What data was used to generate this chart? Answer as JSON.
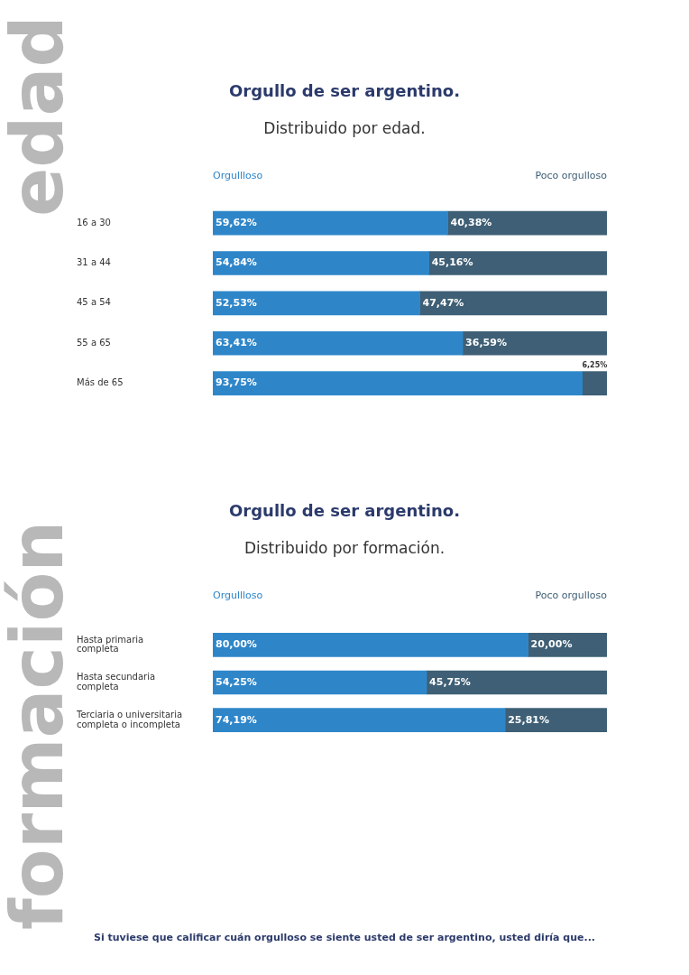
{
  "chart_data": [
    {
      "type": "bar",
      "orientation": "horizontal",
      "stacked": true,
      "title": "Orgullo de ser argentino.",
      "subtitle": "Distribuido por edad.",
      "categories": [
        "16 a 30",
        "31 a 44",
        "45 a 54",
        "55 a 65",
        "Más de 65"
      ],
      "series": [
        {
          "name": "Orgullloso",
          "color": "#2e86c9",
          "values": [
            59.62,
            54.84,
            52.53,
            63.41,
            93.75
          ],
          "value_labels": [
            "59,62%",
            "54,84%",
            "52,53%",
            "63,41%",
            "93,75%"
          ]
        },
        {
          "name": "Poco orgulloso",
          "color": "#3e5f75",
          "values": [
            40.38,
            45.16,
            47.47,
            36.59,
            6.25
          ],
          "value_labels": [
            "40,38%",
            "45,16%",
            "47,47%",
            "36,59%",
            "6,25%"
          ]
        }
      ],
      "xlim": [
        0,
        100
      ],
      "tick_labels": "y",
      "legend": "top",
      "grid": false,
      "annotations": [
        "edad"
      ]
    },
    {
      "type": "bar",
      "orientation": "horizontal",
      "stacked": true,
      "title": "Orgullo de ser argentino.",
      "subtitle": "Distribuido por formación.",
      "categories": [
        "Hasta primaria completa",
        "Hasta secundaria completa",
        "Terciaria o universitaria completa o incompleta"
      ],
      "series": [
        {
          "name": "Orgullloso",
          "color": "#2e86c9",
          "values": [
            80.0,
            54.25,
            74.19
          ],
          "value_labels": [
            "80,00%",
            "54,25%",
            "74,19%"
          ]
        },
        {
          "name": "Poco orgulloso",
          "color": "#3e5f75",
          "values": [
            20.0,
            45.75,
            25.81
          ],
          "value_labels": [
            "20,00%",
            "45,75%",
            "25,81%"
          ]
        }
      ],
      "xlim": [
        0,
        100
      ],
      "tick_labels": "y",
      "legend": "top",
      "grid": false,
      "annotations": [
        "formación",
        "Si tuviese que calificar cuán orgulloso se siente usted de ser argentino, usted diría que..."
      ]
    }
  ]
}
